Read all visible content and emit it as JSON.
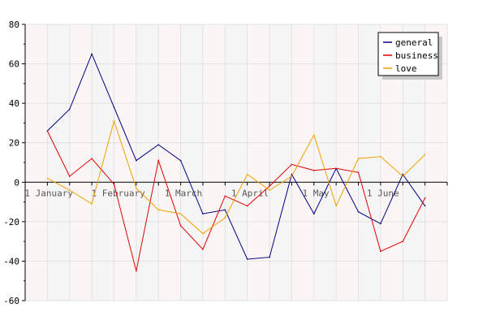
{
  "chart_data": {
    "type": "line",
    "title": "",
    "xlabel": "",
    "ylabel": "",
    "ylim": [
      -60,
      80
    ],
    "yticks": [
      -60,
      -40,
      -20,
      0,
      20,
      40,
      60,
      80
    ],
    "x": [
      1,
      2,
      3,
      4,
      5,
      6,
      7,
      8,
      9,
      10,
      11,
      12,
      13,
      14,
      15,
      16,
      17,
      18
    ],
    "xlim": [
      0,
      19
    ],
    "x_tick_labels": [
      {
        "x": 1,
        "label": "1 January"
      },
      {
        "x": 4,
        "label": "1 February"
      },
      {
        "x": 7.3,
        "label": "1 March"
      },
      {
        "x": 10.3,
        "label": "1 April"
      },
      {
        "x": 13.5,
        "label": "1 May"
      },
      {
        "x": 16.4,
        "label": "1 June"
      }
    ],
    "grid": true,
    "legend_position": "top-right",
    "series": [
      {
        "name": "general",
        "color": "#000080",
        "values": [
          26,
          37,
          65,
          38,
          11,
          19,
          11,
          -16,
          -14,
          -39,
          -38,
          4,
          -16,
          7,
          -15,
          -21,
          4,
          -12
        ]
      },
      {
        "name": "business",
        "color": "#e00000",
        "values": [
          26,
          3,
          12,
          -1,
          -45,
          11,
          -22,
          -34,
          -7,
          -12,
          -2,
          9,
          6,
          7,
          5,
          -35,
          -30,
          -8
        ]
      },
      {
        "name": "love",
        "color": "#f0a000",
        "values": [
          2,
          -4,
          -11,
          31,
          -3,
          -14,
          -16,
          -26,
          -18,
          4,
          -4,
          3,
          24,
          -12,
          12,
          13,
          3,
          14
        ]
      }
    ]
  }
}
